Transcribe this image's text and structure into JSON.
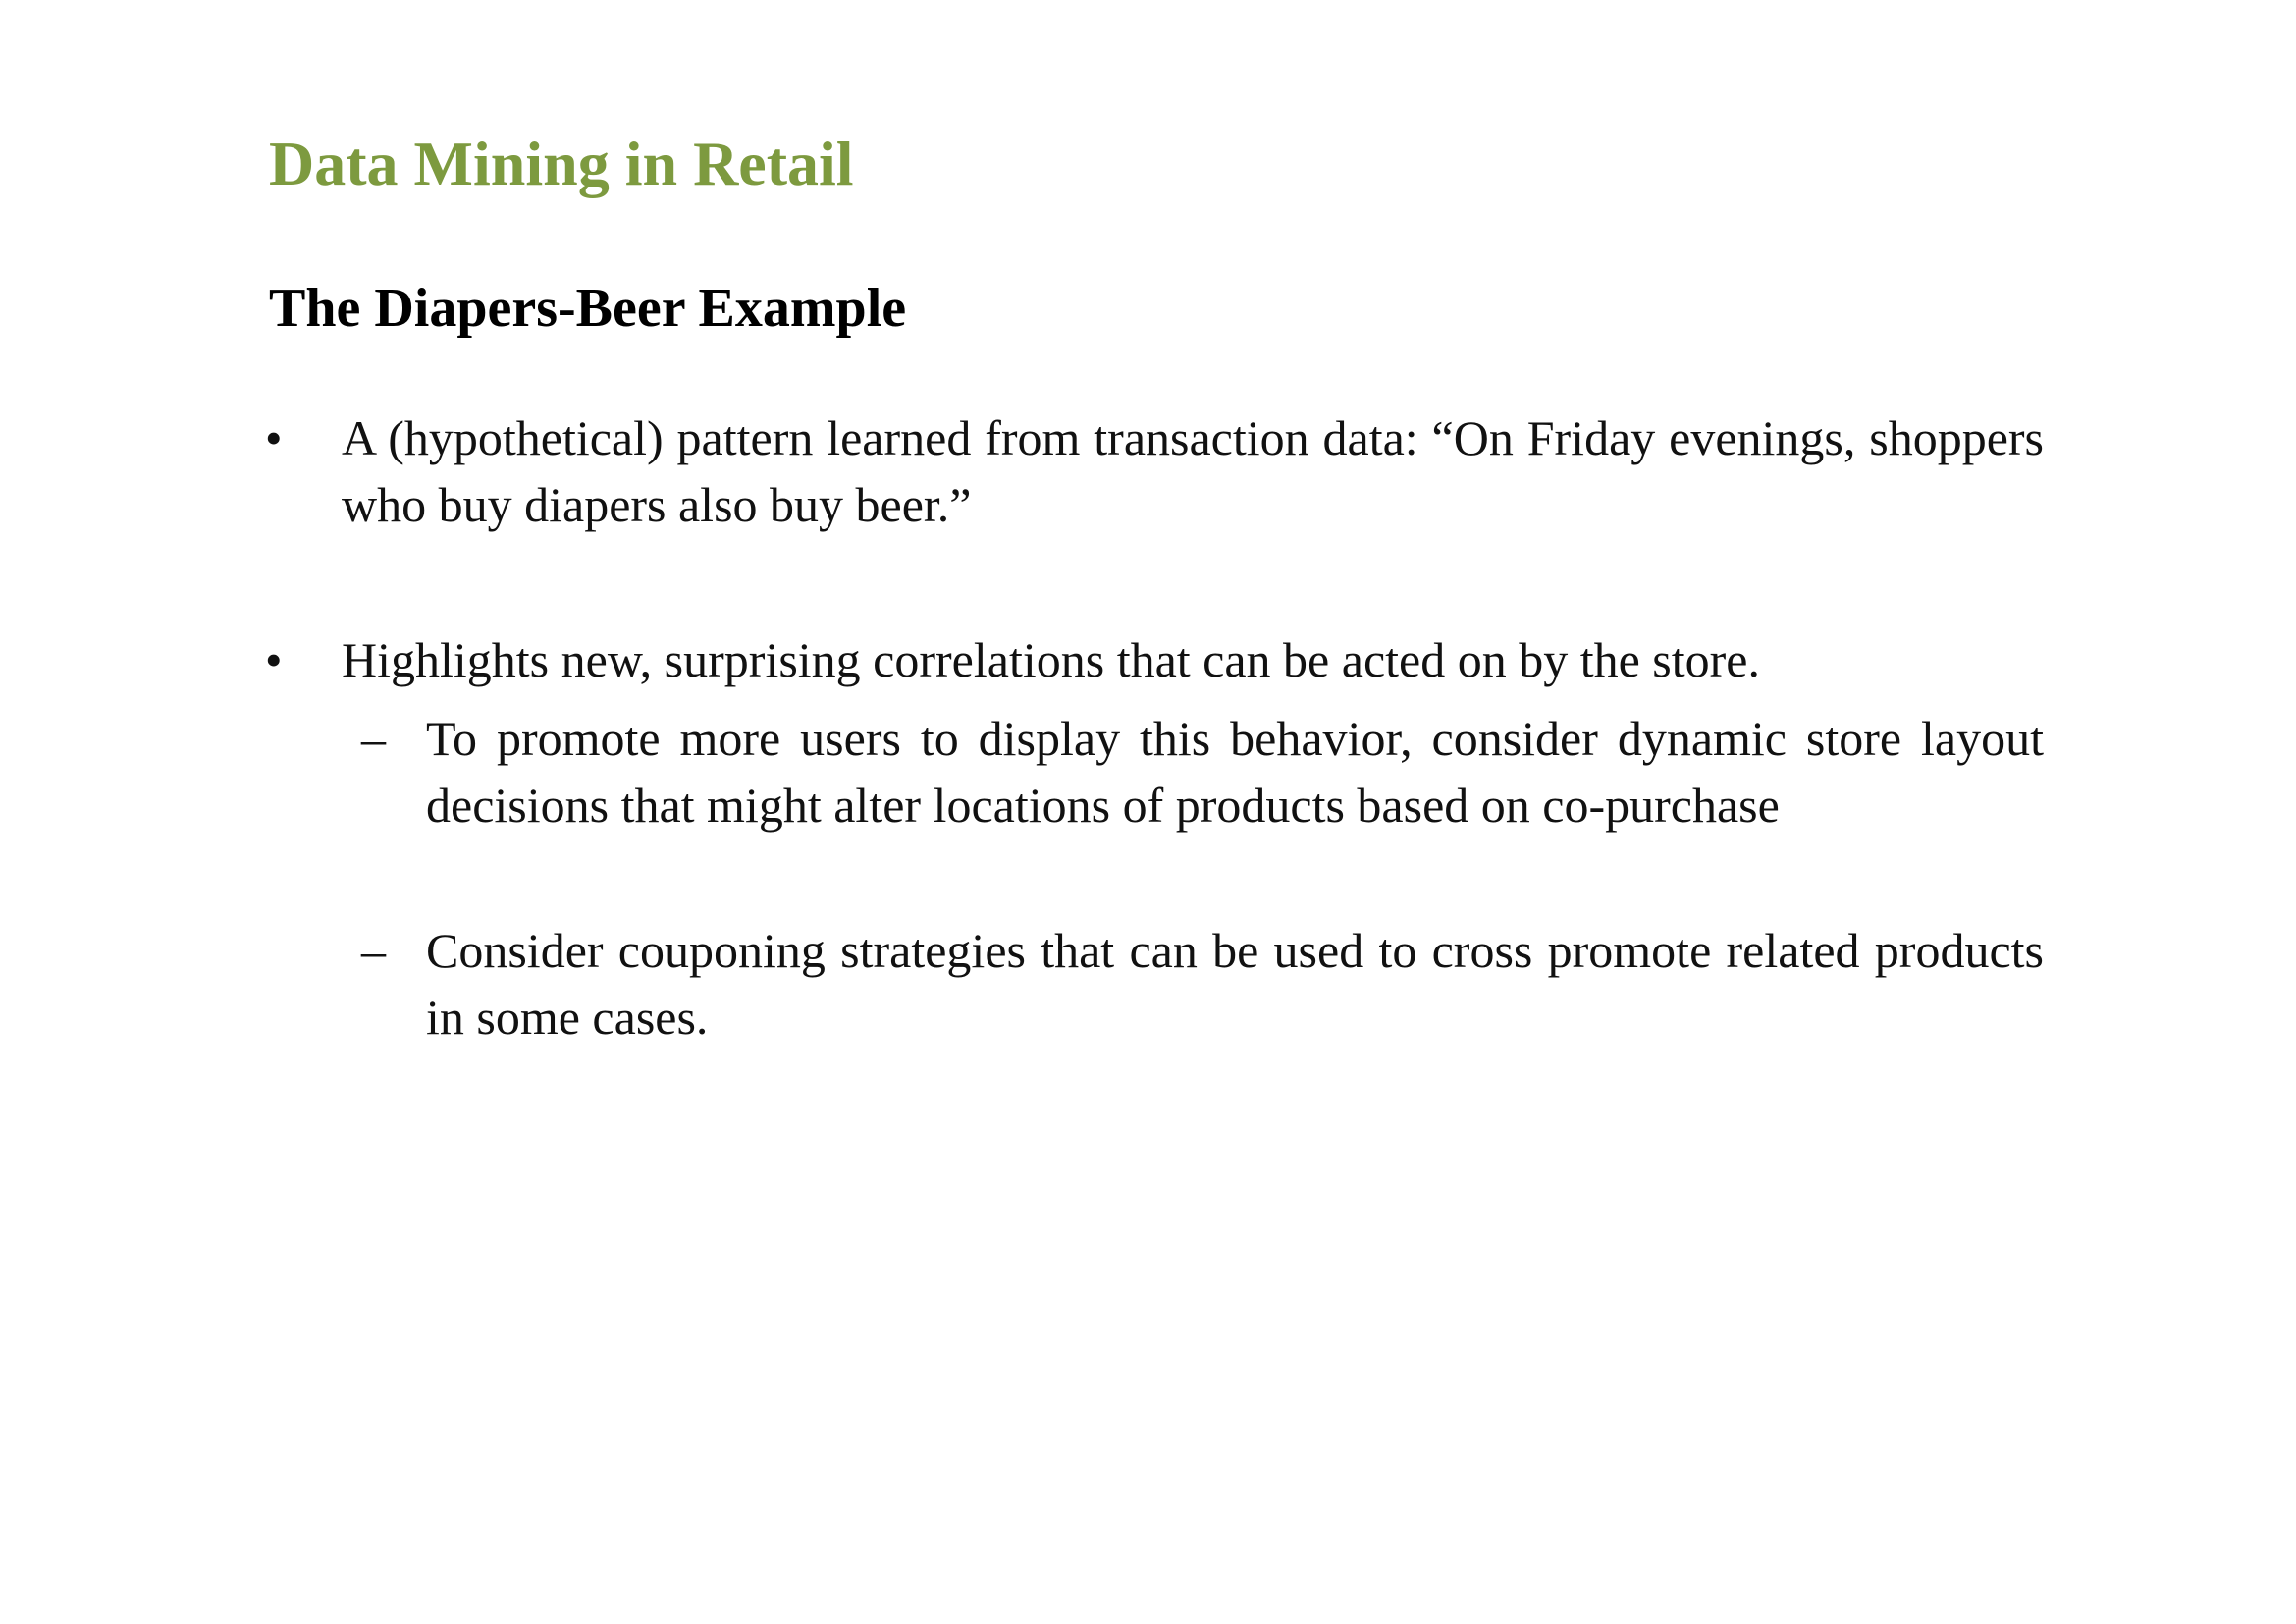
{
  "slide": {
    "title": "Data Mining in Retail",
    "subtitle": "The Diapers-Beer Example",
    "colors": {
      "title": "#7d9a3f",
      "text": "#111111"
    },
    "bullets": [
      {
        "marker": "•",
        "text": "A (hypothetical) pattern learned from transaction data: “On Friday evenings, shoppers who buy diapers also buy beer.”"
      },
      {
        "marker": "•",
        "text": "Highlights new, surprising correlations that can be acted on by the store.",
        "sub_items": [
          {
            "marker": "–",
            "text": "To promote more users to display this behavior, consider dynamic store layout decisions that might alter locations of products based on co-purchase"
          },
          {
            "marker": "–",
            "text": "Consider couponing strategies that can be used to cross promote related products in some cases."
          }
        ]
      }
    ]
  }
}
